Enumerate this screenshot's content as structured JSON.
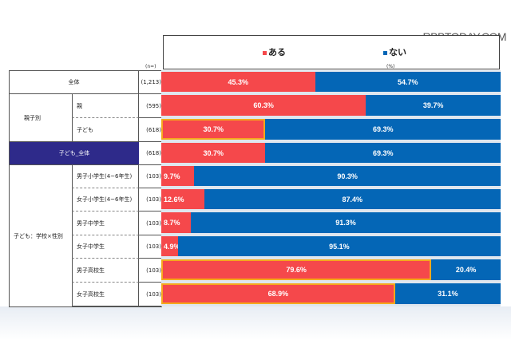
{
  "watermark": "RBBTODAY.COM",
  "legend": [
    {
      "label": "ある",
      "color": "#f5484b"
    },
    {
      "label": "ない",
      "color": "#0466b6"
    }
  ],
  "n_label": "(n=)",
  "unit_label": "(%)",
  "groups": [
    "親子別",
    "子ども：学校×性別"
  ],
  "chart_data": {
    "type": "bar",
    "stacked": true,
    "orientation": "horizontal",
    "xlim": [
      0,
      100
    ],
    "categories": [
      "全体",
      "親",
      "子ども",
      "子ども_全体",
      "男子小学生(4~6年生)",
      "女子小学生(4~6年生)",
      "男子中学生",
      "女子中学生",
      "男子高校生",
      "女子高校生"
    ],
    "category_labels": [
      "全体",
      "親",
      "子ども",
      "子ども_全体",
      "男子小学生(4~6年生)",
      "女子小学生(4~6年生)",
      "男子中学生",
      "女子中学生",
      "男子高校生",
      "女子高校生"
    ],
    "n": [
      "(1,213)",
      "(595)",
      "(618)",
      "(618)",
      "(103)",
      "(103)",
      "(103)",
      "(103)",
      "(103)",
      "(103)"
    ],
    "highlighted": [
      false,
      false,
      true,
      false,
      false,
      false,
      false,
      false,
      true,
      true
    ],
    "series": [
      {
        "name": "ある",
        "color": "#f5484b",
        "values": [
          45.3,
          60.3,
          30.7,
          30.7,
          9.7,
          12.6,
          8.7,
          4.9,
          79.6,
          68.9
        ],
        "labels": [
          "45.3%",
          "60.3%",
          "30.7%",
          "30.7%",
          "9.7%",
          "12.6%",
          "8.7%",
          "4.9%",
          "79.6%",
          "68.9%"
        ]
      },
      {
        "name": "ない",
        "color": "#0466b6",
        "values": [
          54.7,
          39.7,
          69.3,
          69.3,
          90.3,
          87.4,
          91.3,
          95.1,
          20.4,
          31.1
        ],
        "labels": [
          "54.7%",
          "39.7%",
          "69.3%",
          "69.3%",
          "90.3%",
          "87.4%",
          "91.3%",
          "95.1%",
          "20.4%",
          "31.1%"
        ]
      }
    ]
  }
}
